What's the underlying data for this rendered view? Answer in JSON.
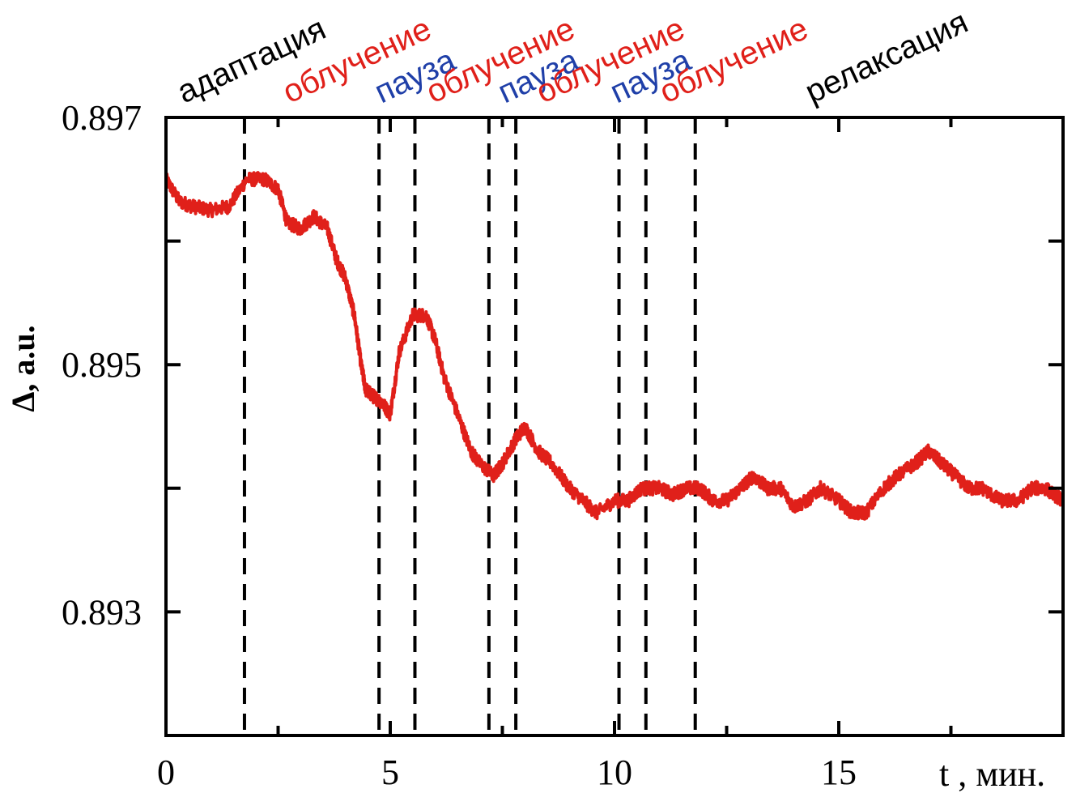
{
  "chart_data": {
    "type": "line",
    "title": "",
    "xlabel": "t , мин.",
    "ylabel": "Δ, a.u.",
    "xlim": [
      0,
      20
    ],
    "ylim": [
      0.892,
      0.897
    ],
    "x_ticks": [
      0,
      5,
      10,
      15
    ],
    "x_minor_ticks": [
      2.5,
      7.5,
      12.5,
      17.5
    ],
    "y_ticks": [
      0.893,
      0.895,
      0.897
    ],
    "y_tick_labels": [
      "0.893",
      "0.895",
      "0.897"
    ],
    "y_minor_ticks": [
      0.894,
      0.896
    ],
    "grid": false,
    "legend": "none",
    "line_color": "#e0201a",
    "phase_boundaries": [
      1.75,
      4.75,
      5.55,
      7.2,
      7.8,
      10.1,
      10.7,
      11.8
    ],
    "phases": [
      {
        "label": "адаптация",
        "color": "#000000",
        "x": 0.4
      },
      {
        "label": "облучение",
        "color": "#e0201a",
        "x": 2.75
      },
      {
        "label": "пауза",
        "color": "#1f3fa8",
        "x": 4.8
      },
      {
        "label": "облучение",
        "color": "#e0201a",
        "x": 5.95
      },
      {
        "label": "пауза",
        "color": "#1f3fa8",
        "x": 7.55
      },
      {
        "label": "облучение",
        "color": "#e0201a",
        "x": 8.4
      },
      {
        "label": "пауза",
        "color": "#1f3fa8",
        "x": 10.05
      },
      {
        "label": "облучение",
        "color": "#e0201a",
        "x": 11.15
      },
      {
        "label": "релаксация",
        "color": "#000000",
        "x": 14.4
      }
    ],
    "series": [
      {
        "x": [
          0,
          0.3,
          0.6,
          1.0,
          1.4,
          1.8,
          2.2,
          2.5,
          2.7,
          3.0,
          3.3,
          3.6,
          3.8,
          4.0,
          4.2,
          4.35,
          4.45,
          4.6,
          4.8,
          5.0,
          5.2,
          5.5,
          5.8,
          6.0,
          6.2,
          6.5,
          6.8,
          7.0,
          7.3,
          7.5,
          7.8,
          8.0,
          8.3,
          8.6,
          9.0,
          9.3,
          9.6,
          10.0,
          10.3,
          10.6,
          11.0,
          11.3,
          11.6,
          11.9,
          12.2,
          12.5,
          12.8,
          13.1,
          13.4,
          13.7,
          14.0,
          14.3,
          14.6,
          15.0,
          15.3,
          15.6,
          16.0,
          16.3,
          16.7,
          17.0,
          17.3,
          17.6,
          17.9,
          18.2,
          18.6,
          19.0,
          19.3,
          19.6,
          20.0
        ],
        "y": [
          0.8965,
          0.89632,
          0.89628,
          0.89625,
          0.89628,
          0.8965,
          0.8965,
          0.89642,
          0.89615,
          0.8961,
          0.8962,
          0.8961,
          0.89585,
          0.8957,
          0.8954,
          0.895,
          0.8948,
          0.89475,
          0.8947,
          0.8946,
          0.8951,
          0.8954,
          0.8954,
          0.8952,
          0.8949,
          0.8946,
          0.8943,
          0.8942,
          0.8941,
          0.8942,
          0.8944,
          0.8945,
          0.8943,
          0.8942,
          0.894,
          0.8939,
          0.8938,
          0.8939,
          0.8939,
          0.894,
          0.894,
          0.89395,
          0.894,
          0.894,
          0.8939,
          0.8939,
          0.894,
          0.8941,
          0.894,
          0.894,
          0.89385,
          0.8939,
          0.894,
          0.8939,
          0.8938,
          0.8938,
          0.894,
          0.8941,
          0.8942,
          0.8943,
          0.8942,
          0.8941,
          0.894,
          0.894,
          0.8939,
          0.8939,
          0.894,
          0.894,
          0.8939
        ]
      }
    ]
  }
}
